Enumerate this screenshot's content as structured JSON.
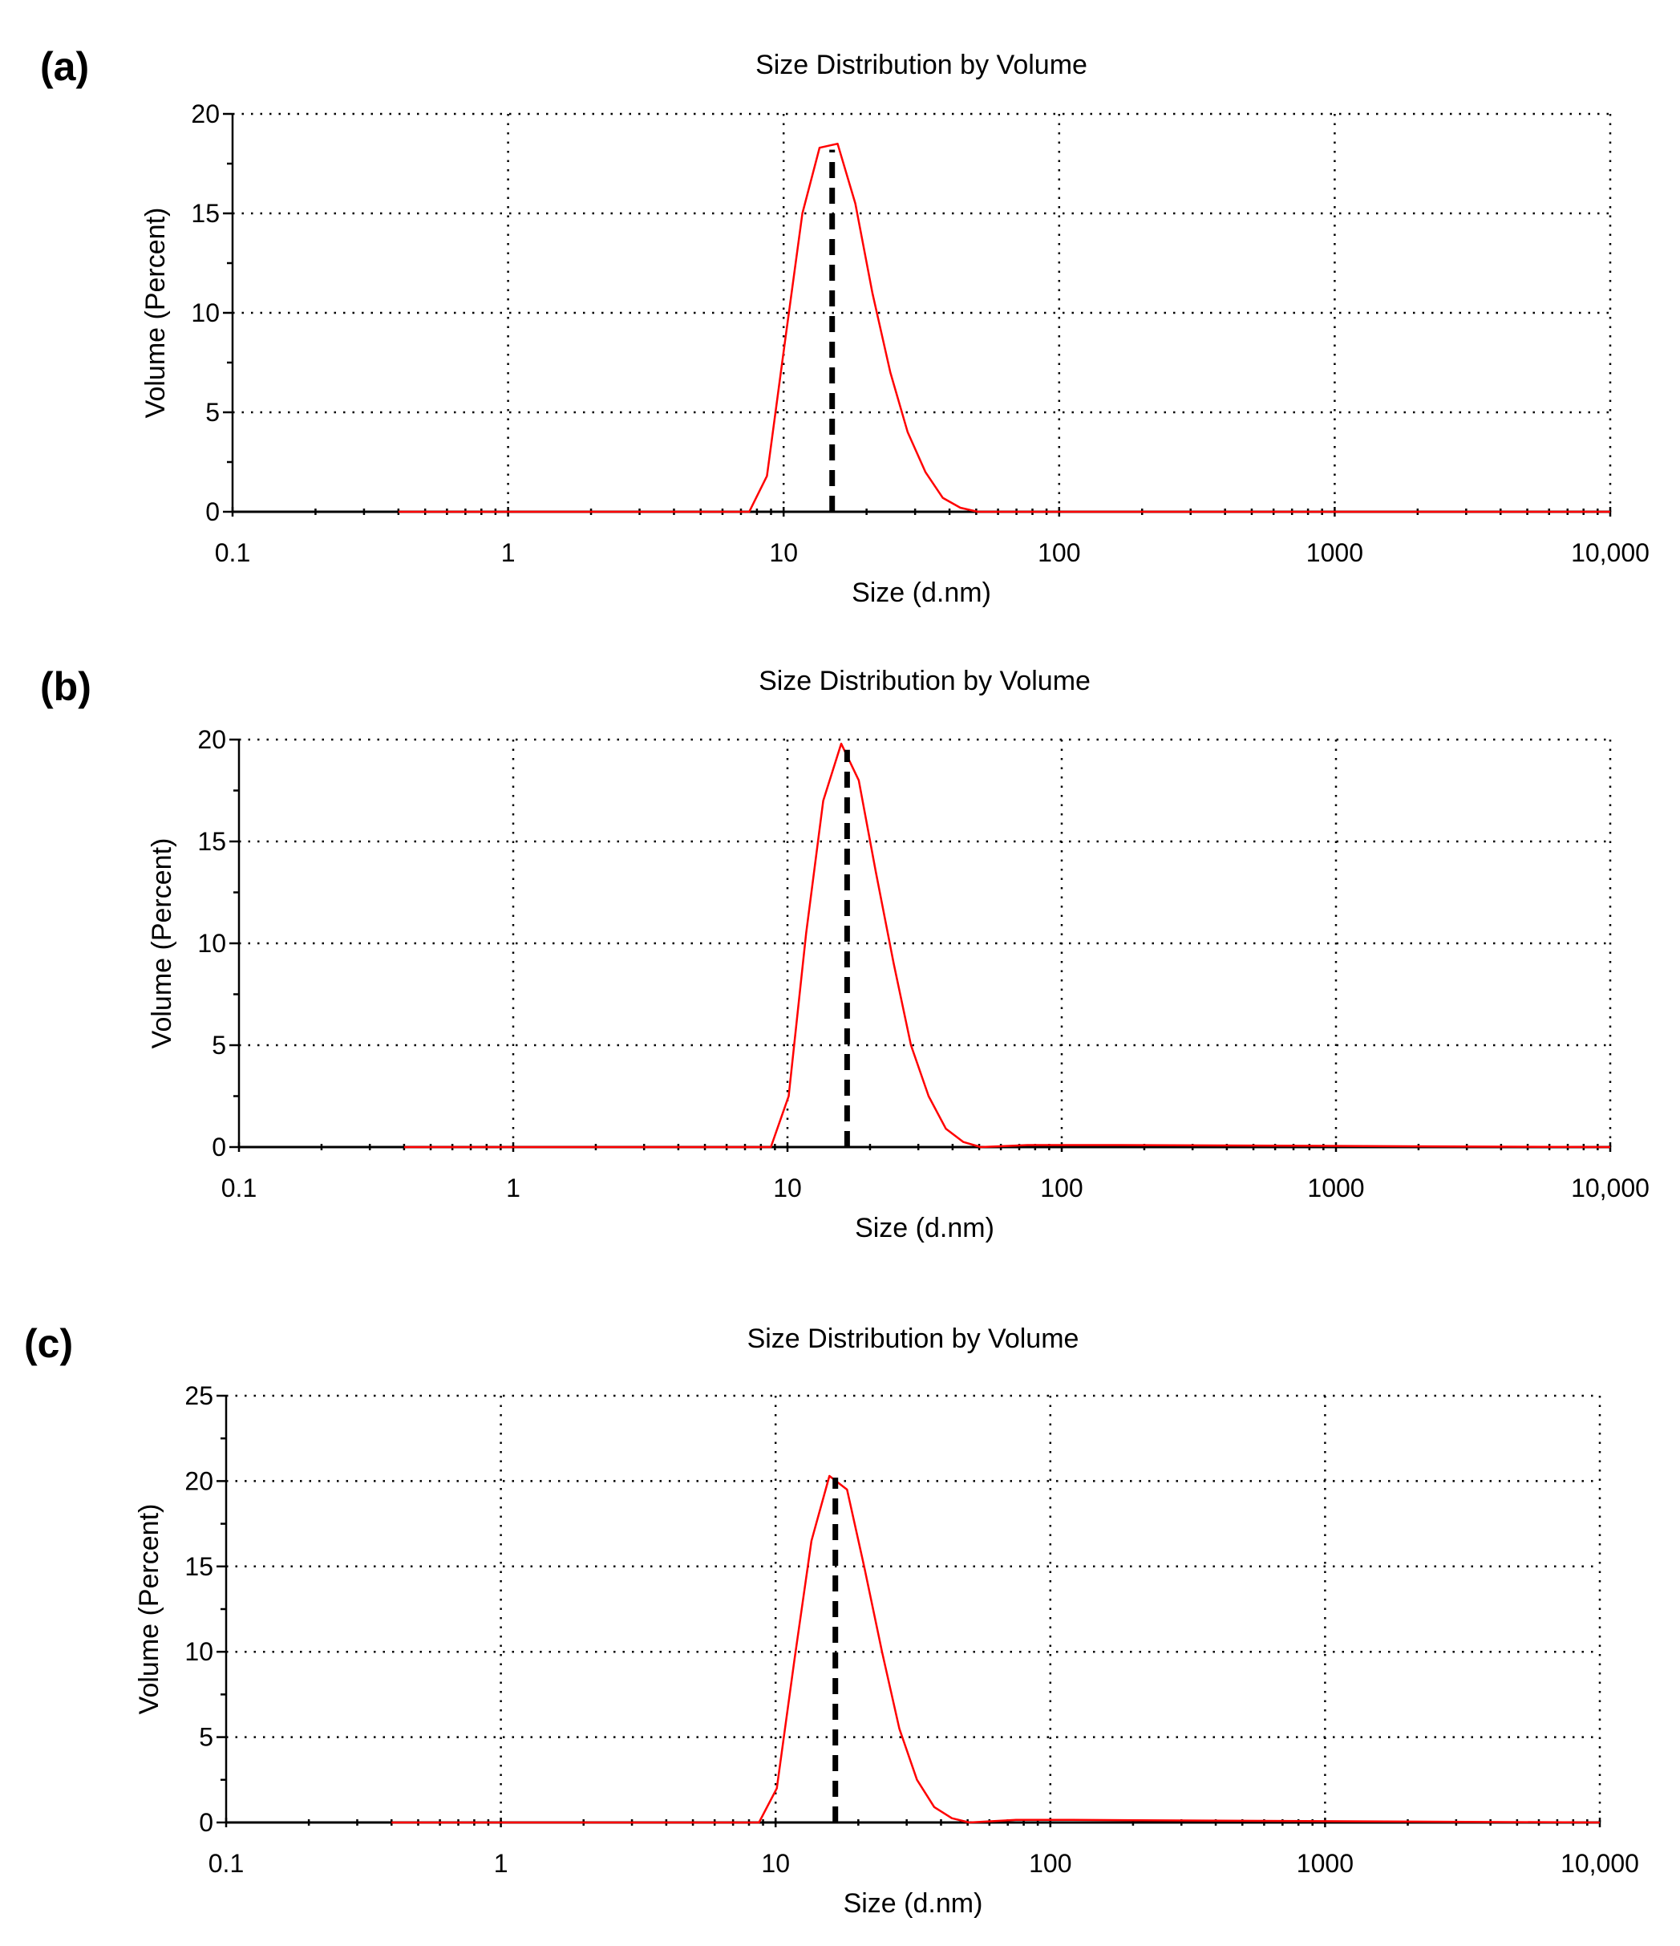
{
  "chart_data": [
    {
      "type": "line",
      "panel_label": "(a)",
      "title": "Size Distribution by Volume",
      "xlabel": "Size (d.nm)",
      "ylabel": "Volume (Percent)",
      "xscale": "log",
      "xlim": [
        0.1,
        10000
      ],
      "ylim": [
        0,
        20
      ],
      "xtick_labels": [
        "0.1",
        "1",
        "10",
        "100",
        "1000",
        "10,000"
      ],
      "ytick_labels": [
        "0",
        "5",
        "10",
        "15",
        "20"
      ],
      "grid": true,
      "series": [
        {
          "name": "Volume distribution",
          "color": "#ff0000",
          "x": [
            0.4,
            7.5,
            8.7,
            10.1,
            11.7,
            13.5,
            15.7,
            18.2,
            21.0,
            24.4,
            28.2,
            32.7,
            37.8,
            43.8,
            50.7,
            10000
          ],
          "y": [
            0,
            0,
            1.8,
            8.5,
            15.0,
            18.3,
            18.5,
            15.5,
            11.0,
            7.0,
            4.0,
            2.0,
            0.7,
            0.2,
            0,
            0
          ]
        }
      ],
      "marker_line": {
        "x": 15.0,
        "y_top": 18.2,
        "color": "#000000",
        "style": "dashed"
      }
    },
    {
      "type": "line",
      "panel_label": "(b)",
      "title": "Size Distribution by Volume",
      "xlabel": "Size (d.nm)",
      "ylabel": "Volume (Percent)",
      "xscale": "log",
      "xlim": [
        0.1,
        10000
      ],
      "ylim": [
        0,
        20
      ],
      "xtick_labels": [
        "0.1",
        "1",
        "10",
        "100",
        "1000",
        "10,000"
      ],
      "ytick_labels": [
        "0",
        "5",
        "10",
        "15",
        "20"
      ],
      "grid": true,
      "series": [
        {
          "name": "Volume distribution",
          "color": "#ff0000",
          "x": [
            0.4,
            8.7,
            10.1,
            11.7,
            13.5,
            15.7,
            18.2,
            21.0,
            24.4,
            28.2,
            32.7,
            37.8,
            43.8,
            50.7,
            75,
            160,
            10000
          ],
          "y": [
            0,
            0,
            2.5,
            10.5,
            17.0,
            19.8,
            18.0,
            13.5,
            9.0,
            5.0,
            2.5,
            0.9,
            0.25,
            0,
            0.1,
            0.1,
            0
          ]
        }
      ],
      "marker_line": {
        "x": 16.5,
        "y_top": 19.5,
        "color": "#000000",
        "style": "dashed"
      }
    },
    {
      "type": "line",
      "panel_label": "(c)",
      "title": "Size Distribution by Volume",
      "xlabel": "Size (d.nm)",
      "ylabel": "Volume (Percent)",
      "xscale": "log",
      "xlim": [
        0.1,
        10000
      ],
      "ylim": [
        0,
        25
      ],
      "xtick_labels": [
        "0.1",
        "1",
        "10",
        "100",
        "1000",
        "10,000"
      ],
      "ytick_labels": [
        "0",
        "5",
        "10",
        "15",
        "20",
        "25"
      ],
      "grid": true,
      "series": [
        {
          "name": "Volume distribution",
          "color": "#ff0000",
          "x": [
            0.4,
            8.7,
            10.1,
            11.7,
            13.5,
            15.7,
            18.2,
            21.0,
            24.4,
            28.2,
            32.7,
            37.8,
            43.8,
            50.7,
            75,
            120,
            10000
          ],
          "y": [
            0,
            0,
            2.0,
            9.5,
            16.5,
            20.3,
            19.5,
            15.0,
            10.0,
            5.5,
            2.5,
            0.9,
            0.25,
            0,
            0.15,
            0.15,
            0
          ]
        }
      ],
      "marker_line": {
        "x": 16.5,
        "y_top": 20.2,
        "color": "#000000",
        "style": "dashed"
      }
    }
  ]
}
